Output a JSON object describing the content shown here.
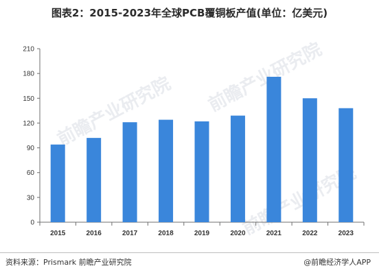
{
  "title": "图表2：2015-2023年全球PCB覆铜板产值(单位：亿美元)",
  "source": "资料来源：Prismark 前瞻产业研究院",
  "credit": "@前瞻经济学人APP",
  "watermark": "前瞻产业研究院",
  "colors": {
    "bar": "#3a86db",
    "axis": "#6d6d6d"
  },
  "chart_data": {
    "type": "bar",
    "categories": [
      "2015",
      "2016",
      "2017",
      "2018",
      "2019",
      "2020",
      "2021",
      "2022",
      "2023"
    ],
    "values": [
      94,
      102,
      121,
      124,
      122,
      129,
      176,
      150,
      138
    ],
    "ylim": [
      0,
      210
    ],
    "yticks": [
      0,
      30,
      60,
      90,
      120,
      150,
      180,
      210
    ],
    "title": "图表2：2015-2023年全球PCB覆铜板产值(单位：亿美元)",
    "xlabel": "",
    "ylabel": "",
    "grid": false,
    "legend": "none"
  }
}
